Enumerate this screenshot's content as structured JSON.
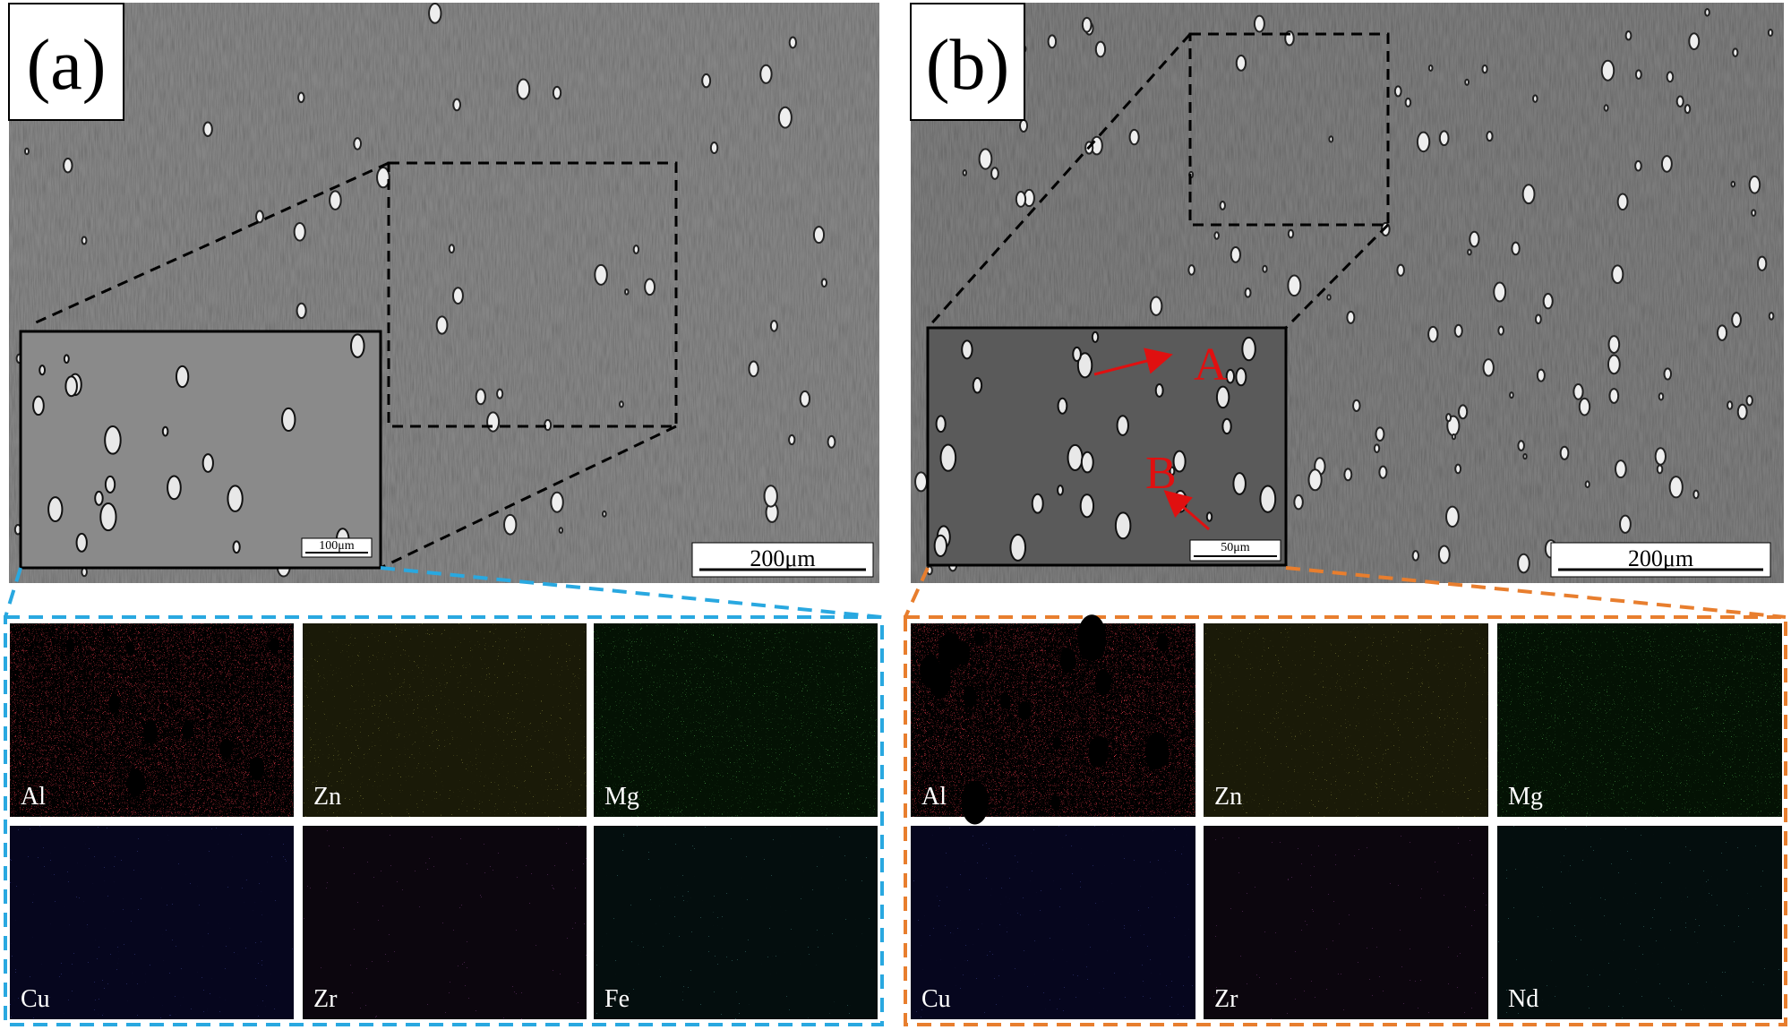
{
  "panels": [
    {
      "label": "(a)",
      "scale_bar": "200μm",
      "inset_scale_bar": "100μm",
      "maps": [
        "Al",
        "Zn",
        "Mg",
        "Cu",
        "Zr",
        "Fe"
      ]
    },
    {
      "label": "(b)",
      "scale_bar": "200μm",
      "inset_scale_bar": "50μm",
      "annotations": [
        "A",
        "B"
      ],
      "maps": [
        "Al",
        "Zn",
        "Mg",
        "Cu",
        "Zr",
        "Nd"
      ]
    }
  ]
}
